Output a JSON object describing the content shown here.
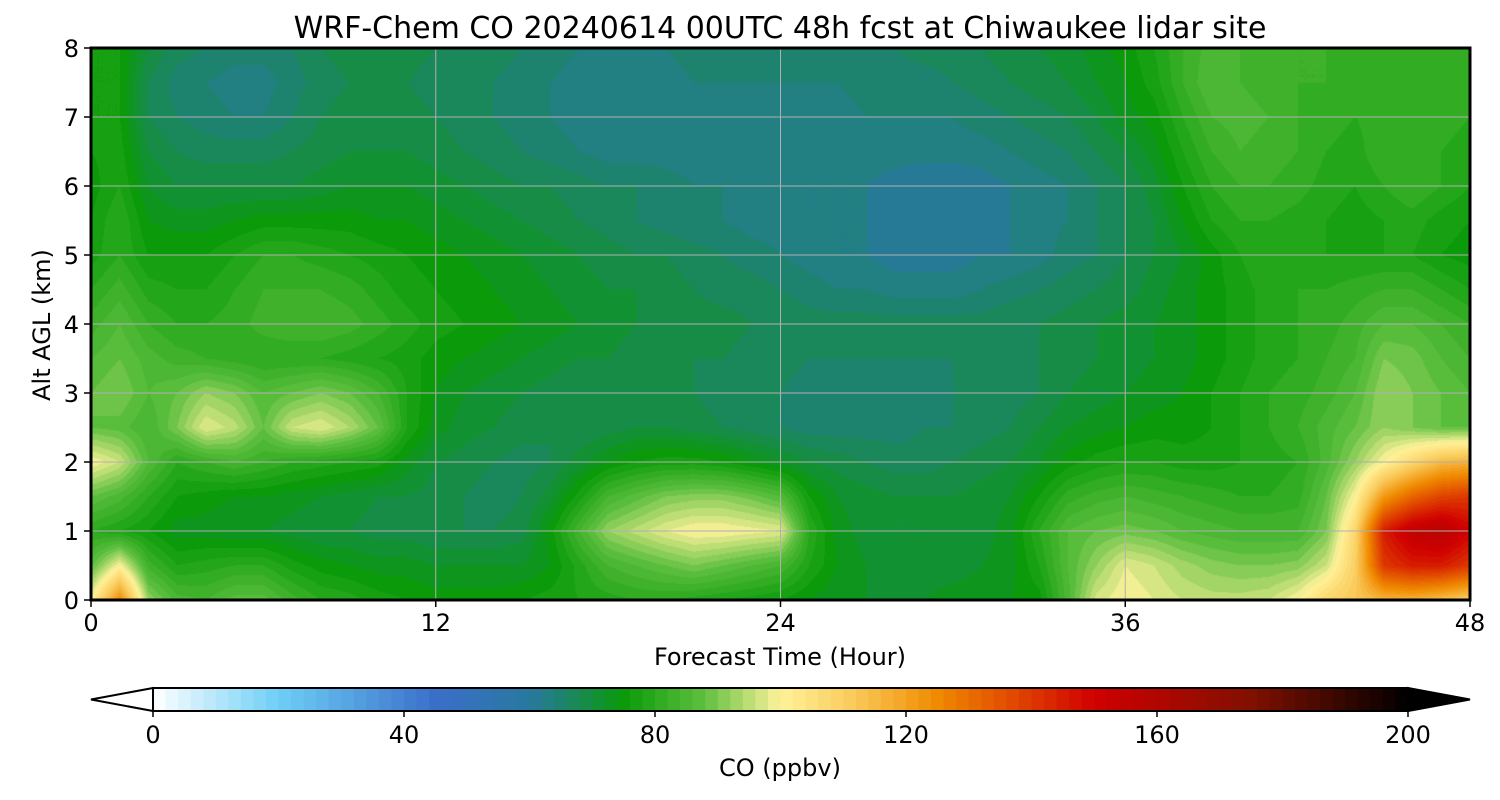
{
  "chart_data": {
    "type": "heatmap",
    "title": "WRF-Chem CO  20240614 00UTC 48h fcst at Chiwaukee lidar site",
    "xlabel": "Forecast Time (Hour)",
    "ylabel": "Alt AGL (km)",
    "xlim": [
      0,
      48
    ],
    "ylim": [
      0,
      8
    ],
    "xticks": [
      0,
      12,
      24,
      36,
      48
    ],
    "yticks": [
      0,
      1,
      2,
      3,
      4,
      5,
      6,
      7,
      8
    ],
    "grid": true,
    "colorbar": {
      "label": "CO  (ppbv)",
      "ticks": [
        0,
        40,
        80,
        120,
        160,
        200
      ],
      "range": [
        0,
        200
      ],
      "extend": "both",
      "levels": 100,
      "colorscale": [
        [
          0,
          "#ffffff"
        ],
        [
          20,
          "#6ecff6"
        ],
        [
          45,
          "#3a6fc9"
        ],
        [
          60,
          "#2878a0"
        ],
        [
          75,
          "#0a9a0a"
        ],
        [
          88,
          "#60c040"
        ],
        [
          100,
          "#fff29a"
        ],
        [
          112,
          "#f9c857"
        ],
        [
          125,
          "#f08a00"
        ],
        [
          150,
          "#d00000"
        ],
        [
          175,
          "#801000"
        ],
        [
          200,
          "#000000"
        ]
      ]
    },
    "x": [
      0,
      1,
      2,
      3,
      4,
      5,
      6,
      7,
      8,
      9,
      10,
      11,
      12,
      13,
      14,
      15,
      16,
      17,
      18,
      19,
      20,
      21,
      22,
      23,
      24,
      25,
      26,
      27,
      28,
      29,
      30,
      31,
      32,
      33,
      34,
      35,
      36,
      37,
      38,
      39,
      40,
      41,
      42,
      43,
      44,
      45,
      46,
      47,
      48
    ],
    "y": [
      0,
      0.5,
      1,
      1.5,
      2,
      2.5,
      3,
      3.5,
      4,
      4.5,
      5,
      5.5,
      6,
      6.5,
      7,
      7.5,
      8
    ],
    "z": [
      [
        100,
        125,
        92,
        85,
        84,
        87,
        87,
        83,
        80,
        79,
        77,
        76,
        75,
        75,
        75,
        76,
        77,
        78,
        79,
        80,
        80,
        79,
        78,
        77,
        76,
        74,
        72,
        72,
        72,
        72,
        73,
        73,
        74,
        75,
        85,
        97,
        100,
        98,
        96,
        95,
        95,
        96,
        100,
        108,
        112,
        116,
        117,
        114,
        110
      ],
      [
        87,
        100,
        83,
        78,
        79,
        80,
        80,
        77,
        75,
        74,
        73,
        73,
        72,
        72,
        72,
        72,
        74,
        79,
        84,
        86,
        88,
        90,
        88,
        86,
        84,
        78,
        74,
        72,
        71,
        71,
        71,
        72,
        73,
        78,
        86,
        92,
        98,
        96,
        93,
        91,
        90,
        90,
        91,
        96,
        110,
        140,
        145,
        145,
        140
      ],
      [
        80,
        78,
        76,
        73,
        73,
        72,
        72,
        71,
        70,
        70,
        69,
        69,
        68,
        68,
        68,
        69,
        75,
        84,
        92,
        95,
        98,
        100,
        100,
        99,
        98,
        80,
        73,
        71,
        70,
        70,
        70,
        71,
        73,
        80,
        86,
        88,
        89,
        88,
        86,
        85,
        84,
        84,
        84,
        90,
        108,
        145,
        155,
        158,
        150
      ],
      [
        88,
        85,
        80,
        76,
        75,
        74,
        74,
        73,
        72,
        71,
        70,
        70,
        69,
        68,
        67,
        68,
        71,
        77,
        84,
        87,
        90,
        91,
        91,
        89,
        86,
        76,
        72,
        71,
        70,
        70,
        70,
        71,
        72,
        76,
        81,
        83,
        84,
        83,
        82,
        81,
        80,
        80,
        81,
        88,
        100,
        122,
        132,
        138,
        140
      ],
      [
        100,
        96,
        86,
        80,
        82,
        84,
        82,
        80,
        79,
        78,
        77,
        73,
        70,
        69,
        68,
        67,
        68,
        71,
        74,
        76,
        77,
        77,
        76,
        74,
        72,
        70,
        69,
        68,
        67,
        67,
        68,
        69,
        70,
        72,
        75,
        77,
        78,
        78,
        77,
        77,
        78,
        79,
        80,
        85,
        92,
        100,
        108,
        115,
        117
      ],
      [
        88,
        87,
        84,
        90,
        98,
        95,
        88,
        96,
        98,
        94,
        88,
        78,
        73,
        71,
        70,
        69,
        68,
        68,
        69,
        70,
        70,
        69,
        68,
        67,
        66,
        65,
        65,
        65,
        65,
        66,
        66,
        67,
        68,
        70,
        72,
        73,
        74,
        75,
        75,
        76,
        78,
        80,
        82,
        85,
        88,
        92,
        90,
        88,
        88
      ],
      [
        88,
        90,
        86,
        88,
        92,
        90,
        86,
        88,
        90,
        88,
        84,
        78,
        74,
        72,
        71,
        70,
        69,
        68,
        68,
        68,
        68,
        68,
        67,
        66,
        66,
        65,
        65,
        65,
        65,
        65,
        66,
        66,
        67,
        68,
        70,
        71,
        72,
        73,
        74,
        76,
        78,
        80,
        81,
        83,
        86,
        92,
        90,
        88,
        86
      ],
      [
        86,
        88,
        85,
        83,
        82,
        81,
        80,
        80,
        80,
        79,
        78,
        77,
        75,
        74,
        73,
        72,
        71,
        70,
        70,
        69,
        69,
        68,
        68,
        67,
        67,
        66,
        66,
        66,
        66,
        66,
        66,
        67,
        67,
        68,
        69,
        70,
        71,
        72,
        73,
        75,
        77,
        79,
        80,
        82,
        84,
        90,
        89,
        86,
        84
      ],
      [
        83,
        86,
        82,
        80,
        80,
        81,
        83,
        84,
        84,
        83,
        81,
        79,
        77,
        76,
        75,
        74,
        73,
        72,
        71,
        70,
        70,
        69,
        69,
        68,
        68,
        67,
        67,
        67,
        67,
        67,
        67,
        67,
        68,
        68,
        69,
        70,
        71,
        72,
        73,
        75,
        77,
        79,
        80,
        81,
        83,
        86,
        86,
        84,
        82
      ],
      [
        80,
        83,
        79,
        78,
        78,
        80,
        82,
        82,
        82,
        81,
        79,
        77,
        76,
        75,
        74,
        73,
        72,
        71,
        70,
        70,
        69,
        68,
        67,
        67,
        66,
        65,
        64,
        64,
        63,
        63,
        63,
        64,
        65,
        66,
        67,
        68,
        69,
        71,
        73,
        75,
        77,
        79,
        80,
        80,
        81,
        82,
        82,
        80,
        78
      ],
      [
        77,
        80,
        76,
        76,
        76,
        78,
        80,
        80,
        79,
        78,
        77,
        76,
        75,
        74,
        73,
        72,
        71,
        70,
        69,
        68,
        68,
        67,
        66,
        65,
        64,
        63,
        62,
        62,
        61,
        61,
        61,
        62,
        62,
        63,
        65,
        66,
        68,
        70,
        72,
        75,
        78,
        80,
        80,
        78,
        78,
        78,
        78,
        76,
        75
      ],
      [
        76,
        80,
        74,
        73,
        73,
        74,
        75,
        75,
        75,
        75,
        74,
        74,
        73,
        72,
        71,
        70,
        69,
        68,
        67,
        66,
        65,
        64,
        64,
        63,
        63,
        62,
        62,
        62,
        61,
        60,
        60,
        61,
        62,
        63,
        64,
        66,
        68,
        70,
        74,
        78,
        80,
        80,
        79,
        78,
        77,
        78,
        79,
        77,
        76
      ],
      [
        75,
        78,
        72,
        70,
        70,
        70,
        70,
        70,
        71,
        72,
        72,
        72,
        71,
        70,
        69,
        68,
        68,
        67,
        66,
        66,
        65,
        64,
        64,
        63,
        63,
        62,
        62,
        62,
        61,
        60,
        60,
        61,
        62,
        63,
        64,
        66,
        68,
        71,
        76,
        80,
        82,
        82,
        81,
        79,
        78,
        80,
        82,
        80,
        78
      ],
      [
        76,
        77,
        70,
        68,
        67,
        67,
        67,
        68,
        69,
        70,
        70,
        70,
        69,
        68,
        67,
        66,
        65,
        64,
        63,
        63,
        63,
        63,
        63,
        63,
        63,
        63,
        63,
        63,
        63,
        63,
        63,
        63,
        64,
        65,
        66,
        68,
        70,
        73,
        78,
        82,
        84,
        83,
        82,
        80,
        79,
        82,
        81,
        80,
        79
      ],
      [
        76,
        76,
        68,
        66,
        65,
        64,
        64,
        66,
        68,
        69,
        69,
        69,
        68,
        67,
        66,
        65,
        64,
        63,
        63,
        63,
        63,
        63,
        63,
        63,
        63,
        63,
        63,
        64,
        64,
        64,
        64,
        65,
        66,
        67,
        68,
        70,
        73,
        75,
        80,
        84,
        85,
        84,
        82,
        81,
        80,
        81,
        82,
        81,
        80
      ],
      [
        76,
        76,
        68,
        65,
        64,
        63,
        63,
        65,
        67,
        68,
        68,
        68,
        67,
        66,
        66,
        65,
        64,
        63,
        63,
        63,
        63,
        64,
        64,
        64,
        64,
        64,
        64,
        65,
        65,
        65,
        66,
        67,
        68,
        69,
        70,
        72,
        74,
        77,
        82,
        86,
        84,
        83,
        82,
        82,
        81,
        81,
        82,
        81,
        80
      ],
      [
        76,
        76,
        70,
        67,
        66,
        65,
        65,
        66,
        68,
        69,
        69,
        69,
        68,
        67,
        67,
        66,
        65,
        64,
        64,
        64,
        64,
        65,
        65,
        65,
        65,
        65,
        66,
        66,
        66,
        67,
        67,
        68,
        69,
        70,
        71,
        73,
        75,
        78,
        82,
        85,
        84,
        83,
        82,
        82,
        81,
        81,
        82,
        81,
        80
      ]
    ]
  }
}
